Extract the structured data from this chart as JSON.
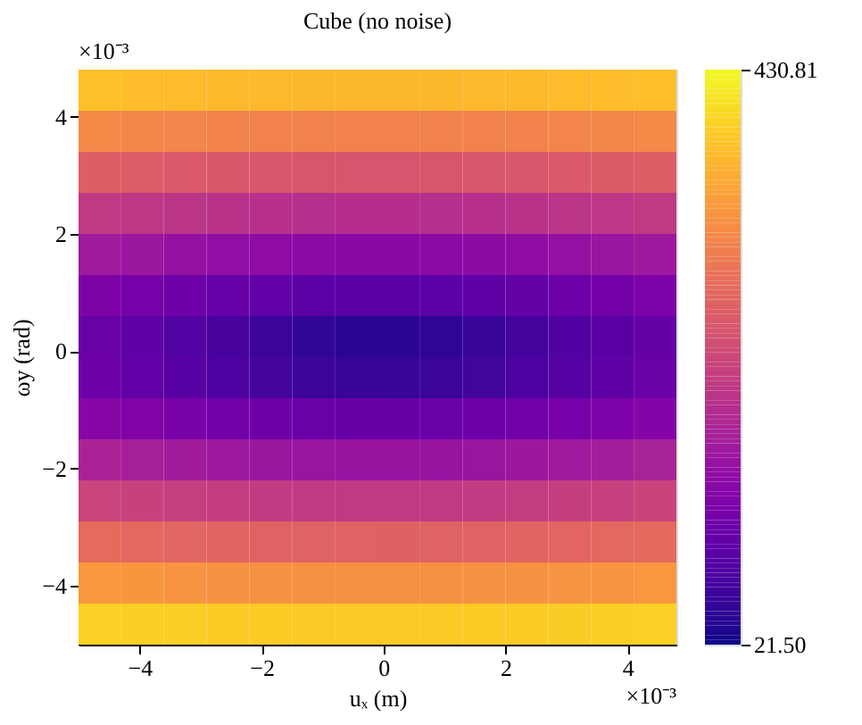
{
  "chart_data": {
    "type": "heatmap",
    "title": "Cube (no noise)",
    "xlabel": "uₓ (m)",
    "ylabel": "ωy (rad)",
    "x": [
      -4.65,
      -3.95,
      -3.25,
      -2.55,
      -1.85,
      -1.15,
      -0.45,
      0.25,
      0.95,
      1.65,
      2.35,
      3.05,
      3.75,
      4.45
    ],
    "y": [
      4.45,
      3.75,
      3.05,
      2.35,
      1.65,
      0.95,
      0.25,
      -0.45,
      -1.15,
      -1.85,
      -2.55,
      -3.25,
      -3.95,
      -4.65
    ],
    "xlim": [
      -5,
      4.8
    ],
    "ylim": [
      -5,
      4.8
    ],
    "xticks": [
      -4,
      -2,
      0,
      2,
      4
    ],
    "yticks": [
      -4,
      -2,
      0,
      2,
      4
    ],
    "clim": [
      21.5,
      430.81
    ],
    "cticks": [
      {
        "value": 21.5,
        "label": "21.50"
      },
      430.81
    ],
    "annotations": [
      "×10⁻³",
      "×10⁻³"
    ],
    "grid": false,
    "cells": [
      [
        376,
        373,
        371,
        369,
        368,
        367,
        367,
        367,
        367,
        368,
        369,
        371,
        373,
        375
      ],
      [
        316,
        313,
        311,
        309,
        307,
        306,
        306,
        306,
        306,
        307,
        308,
        310,
        313,
        315
      ],
      [
        260,
        257,
        254,
        251,
        249,
        248,
        247,
        247,
        248,
        249,
        250,
        253,
        256,
        259
      ],
      [
        208,
        204,
        200,
        196,
        194,
        192,
        191,
        191,
        192,
        193,
        196,
        199,
        203,
        207
      ],
      [
        162,
        156,
        150,
        145,
        142,
        139,
        138,
        138,
        139,
        141,
        144,
        149,
        154,
        160
      ],
      [
        124,
        115,
        107,
        100,
        94,
        89,
        87,
        87,
        89,
        92,
        98,
        105,
        113,
        121
      ],
      [
        102,
        91,
        79,
        68,
        57,
        47,
        40,
        39,
        45,
        54,
        65,
        76,
        87,
        99
      ],
      [
        106,
        95,
        84,
        74,
        65,
        57,
        53,
        52,
        56,
        63,
        72,
        82,
        92,
        103
      ],
      [
        133,
        125,
        118,
        112,
        107,
        103,
        101,
        101,
        102,
        106,
        110,
        116,
        123,
        131
      ],
      [
        175,
        169,
        164,
        159,
        156,
        154,
        153,
        153,
        153,
        155,
        158,
        162,
        167,
        173
      ],
      [
        223,
        219,
        215,
        212,
        209,
        208,
        207,
        207,
        207,
        209,
        211,
        214,
        217,
        222
      ],
      [
        276,
        273,
        270,
        267,
        265,
        264,
        264,
        263,
        264,
        265,
        267,
        269,
        272,
        275
      ],
      [
        333,
        330,
        328,
        326,
        324,
        323,
        323,
        323,
        323,
        324,
        325,
        327,
        329,
        332
      ],
      [
        393,
        391,
        389,
        387,
        386,
        385,
        385,
        385,
        385,
        386,
        387,
        388,
        390,
        392
      ]
    ]
  }
}
